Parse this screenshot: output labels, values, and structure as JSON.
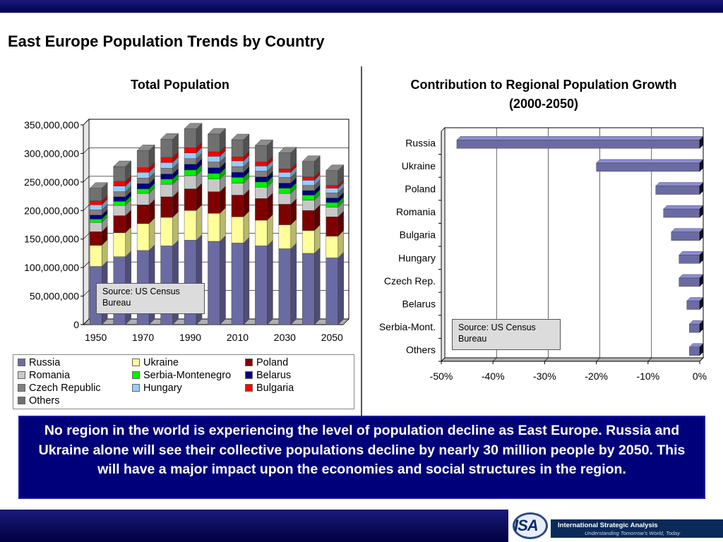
{
  "page": {
    "title": "East Europe Population Trends by Country",
    "message": "No region in the world is experiencing the level of population decline as East Europe.  Russia and Ukraine alone will see their collective populations decline by nearly 30 million people by 2050.  This will have a major impact upon the economies and social structures in the region."
  },
  "logo": {
    "letters": "ISA",
    "name": "International Strategic Analysis",
    "tagline": "Understanding Tomorrow's World, Today"
  },
  "chart_data": [
    {
      "type": "bar",
      "stacked": true,
      "three_d": true,
      "title": "Total Population",
      "x": [
        1950,
        1960,
        1970,
        1980,
        1990,
        2000,
        2010,
        2020,
        2030,
        2040,
        2050
      ],
      "x_tick_labels": [
        "1950",
        "1970",
        "1990",
        "2010",
        "2030",
        "2050"
      ],
      "y_tick_labels": [
        "0",
        "50,000,000",
        "100,000,000",
        "150,000,000",
        "200,000,000",
        "250,000,000",
        "300,000,000",
        "350,000,000"
      ],
      "ylim": [
        0,
        350000000
      ],
      "grid": true,
      "legend_position": "bottom",
      "series": [
        {
          "name": "Russia",
          "color": "#6b6ba3",
          "values": [
            102000000,
            119000000,
            130000000,
            138000000,
            148000000,
            146000000,
            143000000,
            138000000,
            133000000,
            125000000,
            117000000
          ]
        },
        {
          "name": "Ukraine",
          "color": "#ffff99",
          "values": [
            37000000,
            42000000,
            47000000,
            50000000,
            52000000,
            49000000,
            46000000,
            45000000,
            42000000,
            40000000,
            38000000
          ]
        },
        {
          "name": "Poland",
          "color": "#800000",
          "values": [
            24000000,
            30000000,
            33000000,
            36000000,
            38000000,
            38000000,
            38000000,
            38000000,
            36000000,
            35000000,
            34000000
          ]
        },
        {
          "name": "Romania",
          "color": "#c8c8c8",
          "values": [
            16000000,
            18000000,
            20000000,
            22000000,
            23000000,
            22000000,
            21000000,
            20000000,
            19000000,
            18000000,
            17000000
          ]
        },
        {
          "name": "Serbia-Montenegro",
          "color": "#00ee00",
          "values": [
            6000000,
            7000000,
            8000000,
            9000000,
            10000000,
            10000000,
            10000000,
            9000000,
            9000000,
            9000000,
            8000000
          ]
        },
        {
          "name": "Belarus",
          "color": "#000080",
          "values": [
            7000000,
            8000000,
            9000000,
            9000000,
            10000000,
            10000000,
            9000000,
            9000000,
            9000000,
            8000000,
            8000000
          ]
        },
        {
          "name": "Czech Republic",
          "color": "#808080",
          "values": [
            9000000,
            9000000,
            10000000,
            10000000,
            10000000,
            10000000,
            10000000,
            10000000,
            10000000,
            9000000,
            9000000
          ]
        },
        {
          "name": "Hungary",
          "color": "#99ccff",
          "values": [
            9000000,
            10000000,
            10000000,
            10000000,
            10000000,
            10000000,
            10000000,
            9000000,
            9000000,
            9000000,
            8000000
          ]
        },
        {
          "name": "Bulgaria",
          "color": "#ff0000",
          "values": [
            7000000,
            8000000,
            8000000,
            9000000,
            9000000,
            8000000,
            7000000,
            7000000,
            6000000,
            6000000,
            5000000
          ]
        },
        {
          "name": "Others",
          "color": "#707070",
          "values": [
            22000000,
            26000000,
            30000000,
            32000000,
            33000000,
            31000000,
            30000000,
            29000000,
            28000000,
            27000000,
            26000000
          ]
        }
      ],
      "source_note": "Source: US Census Bureau"
    },
    {
      "type": "bar",
      "orientation": "horizontal",
      "three_d": true,
      "title": "Contribution to Regional Population Growth (2000-2050)",
      "categories": [
        "Russia",
        "Ukraine",
        "Poland",
        "Romania",
        "Bulgaria",
        "Hungary",
        "Czech Rep.",
        "Belarus",
        "Serbia-Mont.",
        "Others"
      ],
      "values": [
        -47,
        -20,
        -8.5,
        -7,
        -5.5,
        -4,
        -4,
        -2.5,
        -2,
        -2
      ],
      "xlim": [
        -50,
        0
      ],
      "x_tick_labels": [
        "-50%",
        "-40%",
        "-30%",
        "-20%",
        "-10%",
        "0%"
      ],
      "grid": true,
      "color": "#6b6ba3",
      "source_note": "Source: US Census Bureau"
    }
  ]
}
